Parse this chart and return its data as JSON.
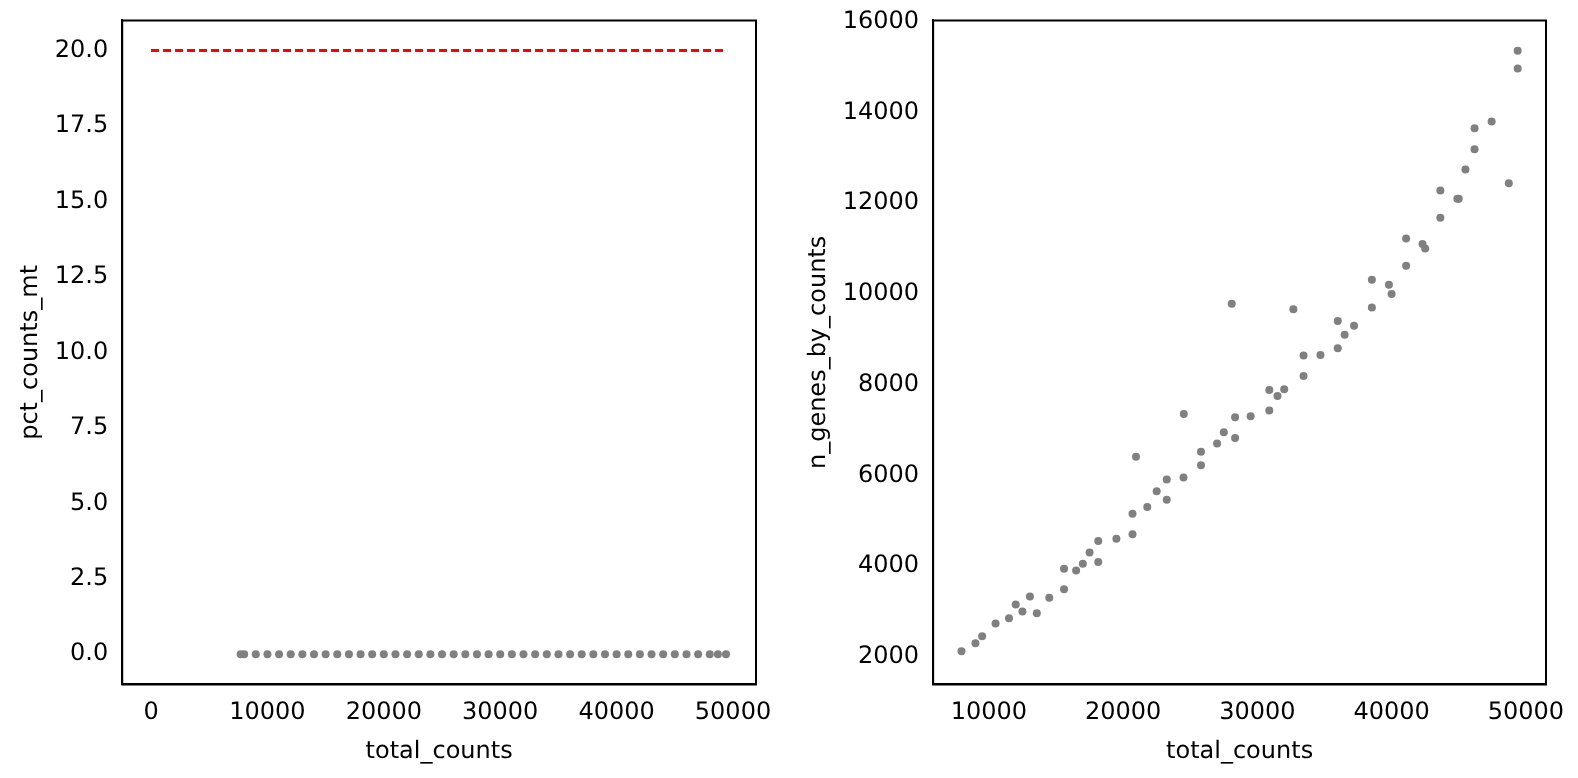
{
  "chart_data": [
    {
      "type": "scatter",
      "xlabel": "total_counts",
      "ylabel": "pct_counts_mt",
      "marker": "circle",
      "xlim": [
        -2475,
        51975
      ],
      "ylim": [
        -1,
        21
      ],
      "xticks": [
        0,
        10000,
        20000,
        30000,
        40000,
        50000
      ],
      "yticks": [
        {
          "value": 0,
          "label": "0.0"
        },
        {
          "value": 2.5,
          "label": "2.5"
        },
        {
          "value": 5,
          "label": "5.0"
        },
        {
          "value": 7.5,
          "label": "7.5"
        },
        {
          "value": 10,
          "label": "10.0"
        },
        {
          "value": 12.5,
          "label": "12.5"
        },
        {
          "value": 15,
          "label": "15.0"
        },
        {
          "value": 17.5,
          "label": "17.5"
        },
        {
          "value": 20,
          "label": "20.0"
        }
      ],
      "series": [
        {
          "type": "scatter",
          "color": "#808080",
          "x": [
            7700,
            8000,
            9000,
            10000,
            11000,
            12000,
            13000,
            14000,
            15000,
            16000,
            17000,
            18000,
            19000,
            20000,
            21000,
            22000,
            23000,
            24000,
            25000,
            26000,
            27000,
            28000,
            29000,
            30000,
            31000,
            32000,
            33000,
            34000,
            35000,
            36000,
            37000,
            38000,
            39000,
            40000,
            41000,
            42000,
            43000,
            44000,
            45000,
            46000,
            47000,
            48000,
            48700,
            49400
          ],
          "values": [
            0,
            0,
            0,
            0,
            0,
            0,
            0,
            0,
            0,
            0,
            0,
            0,
            0,
            0,
            0,
            0,
            0,
            0,
            0,
            0,
            0,
            0,
            0,
            0,
            0,
            0,
            0,
            0,
            0,
            0,
            0,
            0,
            0,
            0,
            0,
            0,
            0,
            0,
            0,
            0,
            0,
            0,
            0,
            0
          ]
        },
        {
          "type": "line",
          "color": "#ff0000",
          "line_style": "dashed",
          "marker": "none",
          "x": [
            0,
            49500
          ],
          "values": [
            20,
            20
          ]
        }
      ]
    },
    {
      "type": "scatter",
      "xlabel": "total_counts",
      "ylabel": "n_genes_by_counts",
      "marker": "circle",
      "xlim": [
        5850,
        51500
      ],
      "ylim": [
        1390,
        16030
      ],
      "xticks": [
        10000,
        20000,
        30000,
        40000,
        50000
      ],
      "yticks": [
        2000,
        4000,
        6000,
        8000,
        10000,
        12000,
        14000,
        16000
      ],
      "series": [
        {
          "type": "scatter",
          "color": "#808080",
          "x": [
            7960,
            9000,
            10500,
            11500,
            12500,
            13060,
            13570,
            14500,
            15600,
            15600,
            16500,
            17500,
            18150,
            18150,
            19500,
            20700,
            20700,
            21800,
            23250,
            23250,
            24500,
            25800,
            25800,
            27000,
            28340,
            28340,
            29500,
            30890,
            30890,
            32000,
            33440,
            33440,
            34700,
            35990,
            35990,
            37200,
            38530,
            38530,
            39800,
            41080,
            41080,
            42300,
            43630,
            43630,
            44900,
            46180,
            45500,
            49390,
            49390,
            48730,
            28090,
            47450,
            46180,
            32680,
            20960,
            24520,
            9500,
            12000,
            17000,
            22500,
            27500,
            31500,
            36500,
            40000,
            42500,
            45000
          ],
          "values": [
            2120,
            2300,
            2730,
            2850,
            3000,
            3330,
            2960,
            3300,
            3940,
            3490,
            3900,
            4300,
            4550,
            4090,
            4600,
            5150,
            4700,
            5300,
            5910,
            5460,
            5950,
            6520,
            6220,
            6700,
            7280,
            6820,
            7300,
            7880,
            7430,
            7900,
            8640,
            8190,
            8650,
            9400,
            8800,
            9300,
            10310,
            9700,
            10200,
            11220,
            10620,
            11100,
            12280,
            11680,
            12100,
            13190,
            12740,
            15360,
            14970,
            12440,
            9780,
            13800,
            13650,
            9660,
            6410,
            7350,
            2450,
            3150,
            4050,
            5650,
            6950,
            7750,
            9100,
            10000,
            11000,
            12100
          ]
        }
      ]
    }
  ]
}
